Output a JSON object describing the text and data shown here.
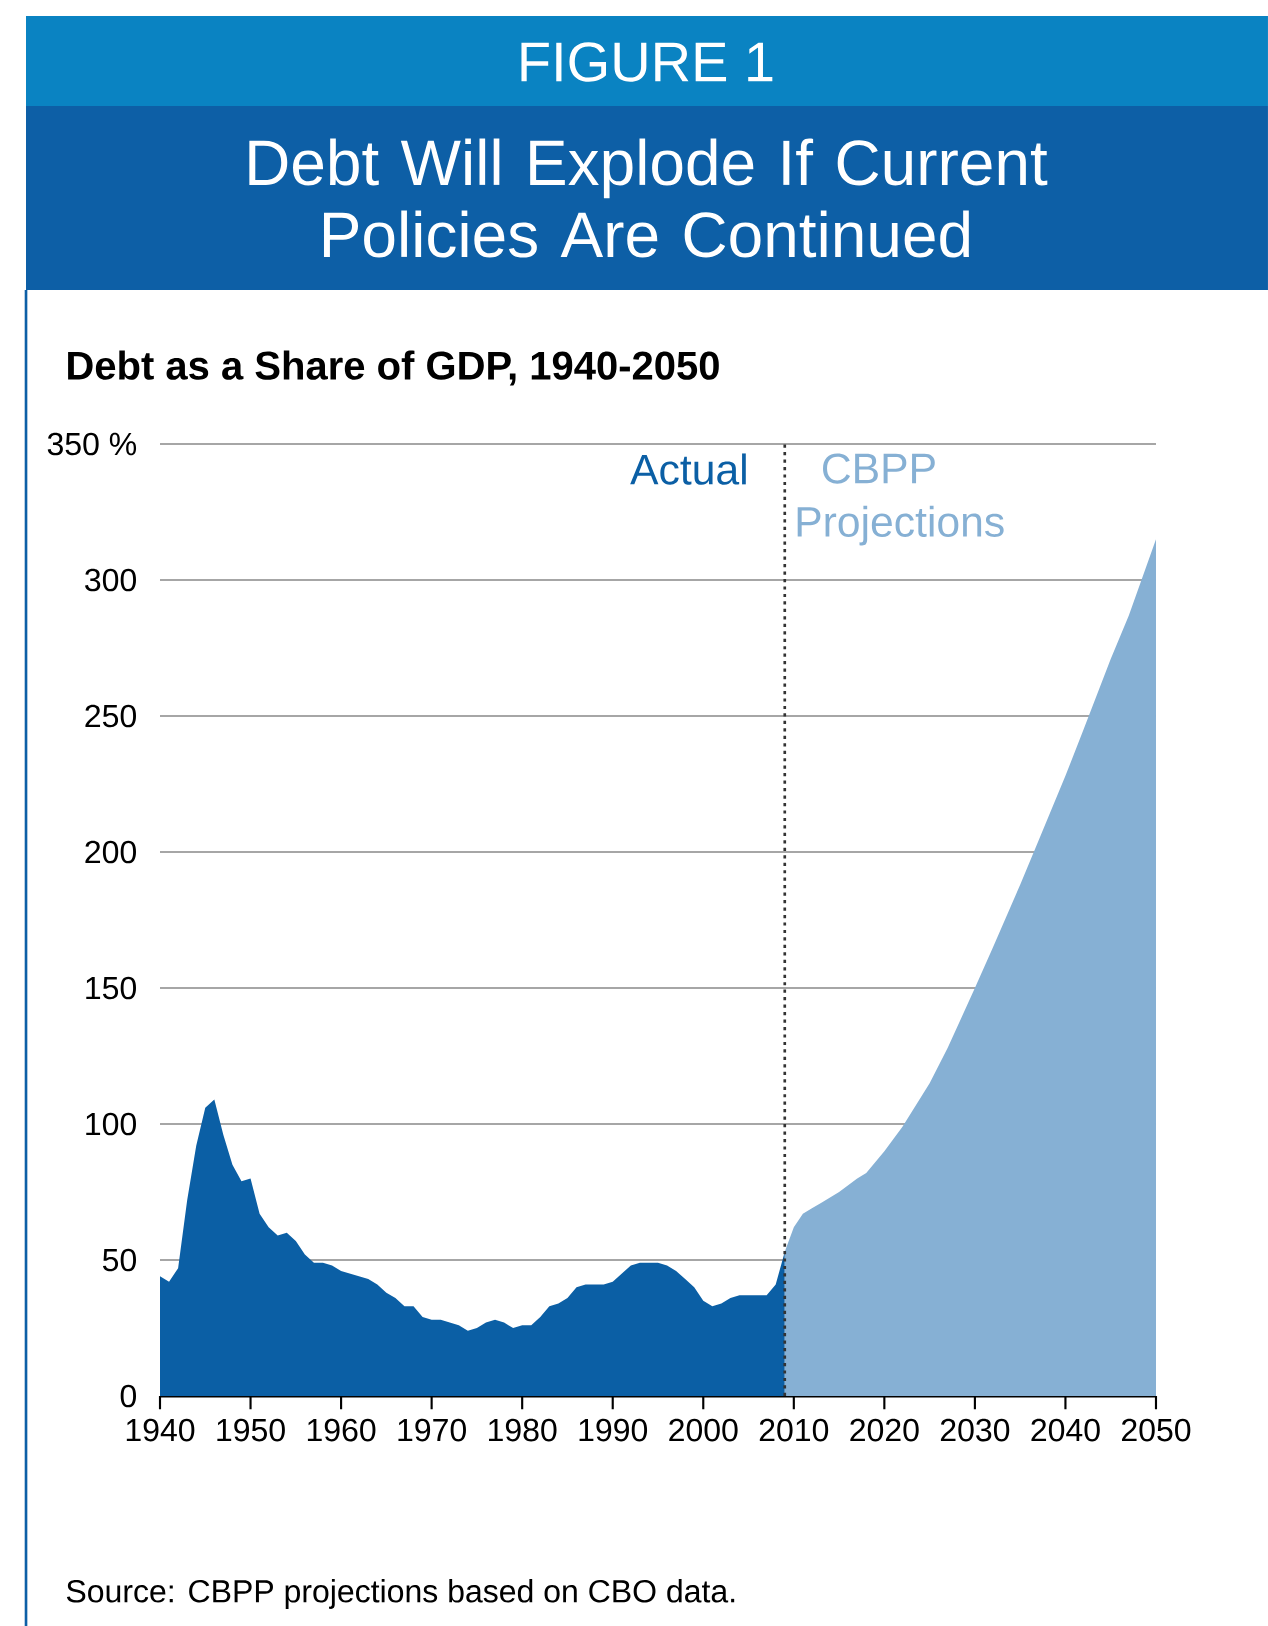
{
  "chart_data": {
    "type": "area",
    "title": "Debt Will Explode If Current Policies Are Continued",
    "subtitle": "Debt as a Share of GDP, 1940-2050",
    "annotations": [
      "FIGURE 1",
      "Source: CBPP projections based on CBO data."
    ],
    "series": [
      {
        "name": "Actual",
        "color": "#0b5fa5",
        "x": [
          1940,
          1941,
          1942,
          1943,
          1944,
          1945,
          1946,
          1947,
          1948,
          1949,
          1950,
          1951,
          1952,
          1953,
          1954,
          1955,
          1956,
          1957,
          1958,
          1959,
          1960,
          1961,
          1962,
          1963,
          1964,
          1965,
          1966,
          1967,
          1968,
          1969,
          1970,
          1971,
          1972,
          1973,
          1974,
          1975,
          1976,
          1977,
          1978,
          1979,
          1980,
          1981,
          1982,
          1983,
          1984,
          1985,
          1986,
          1987,
          1988,
          1989,
          1990,
          1991,
          1992,
          1993,
          1994,
          1995,
          1996,
          1997,
          1998,
          1999,
          2000,
          2001,
          2002,
          2003,
          2004,
          2005,
          2006,
          2007,
          2008,
          2009
        ],
        "values": [
          44,
          42,
          47,
          72,
          92,
          106,
          109,
          96,
          85,
          79,
          80,
          67,
          62,
          59,
          60,
          57,
          52,
          49,
          49,
          48,
          46,
          45,
          44,
          43,
          41,
          38,
          36,
          33,
          33,
          29,
          28,
          28,
          27,
          26,
          24,
          25,
          27,
          28,
          27,
          25,
          26,
          26,
          29,
          33,
          34,
          36,
          40,
          41,
          41,
          41,
          42,
          45,
          48,
          49,
          49,
          49,
          48,
          46,
          43,
          40,
          35,
          33,
          34,
          36,
          37,
          37,
          37,
          37,
          41,
          53
        ]
      },
      {
        "name": "CBPP Projections",
        "color": "#86b0d4",
        "x": [
          2009,
          2010,
          2011,
          2012,
          2013,
          2015,
          2017,
          2018,
          2020,
          2022,
          2025,
          2027,
          2030,
          2032,
          2035,
          2037,
          2040,
          2042,
          2045,
          2047,
          2050
        ],
        "values": [
          53,
          62,
          67,
          69,
          71,
          75,
          80,
          82,
          90,
          99,
          115,
          128,
          150,
          165,
          188,
          204,
          228,
          245,
          271,
          287,
          315
        ]
      }
    ],
    "xlim": [
      1940,
      2050
    ],
    "xticks": [
      1940,
      1950,
      1960,
      1970,
      1980,
      1990,
      2000,
      2010,
      2020,
      2030,
      2040,
      2050
    ],
    "ylim": [
      0,
      350
    ],
    "yticks": [
      0,
      50,
      100,
      150,
      200,
      250,
      300,
      {
        "value": 350,
        "label": "350 %"
      }
    ],
    "grid": "y",
    "ref_lines": [
      {
        "axis": "x",
        "value": 2009,
        "color": "#333333",
        "line_style": "dotted"
      }
    ]
  }
}
